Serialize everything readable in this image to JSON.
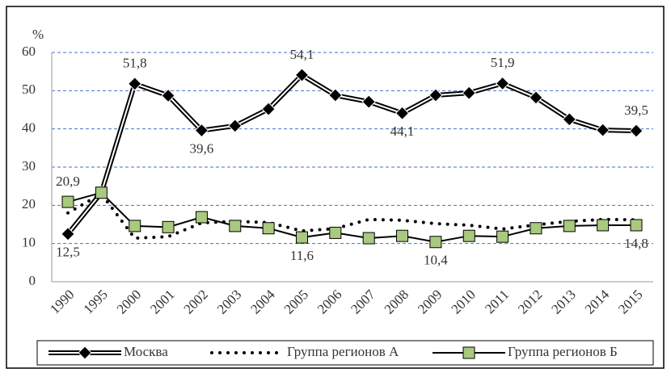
{
  "chart_data": {
    "type": "line",
    "ylabel": "%",
    "categories": [
      "1990",
      "1995",
      "2000",
      "2001",
      "2002",
      "2003",
      "2004",
      "2005",
      "2006",
      "2007",
      "2008",
      "2009",
      "2010",
      "2011",
      "2012",
      "2013",
      "2014",
      "2015"
    ],
    "ylim": [
      0,
      60
    ],
    "yticks": [
      0,
      10,
      20,
      30,
      40,
      50,
      60
    ],
    "grid": true,
    "legend": "bottom",
    "series": [
      {
        "name": "Москва",
        "color": "#000000",
        "line_style": "double",
        "marker": "diamond",
        "marker_color": "#000000",
        "values": [
          12.5,
          23.3,
          51.8,
          48.7,
          39.6,
          40.8,
          45.2,
          54.1,
          48.8,
          47.1,
          44.1,
          48.8,
          49.4,
          51.9,
          48.2,
          42.5,
          39.7,
          39.5
        ],
        "value_labels": [
          "12,5",
          null,
          "51,8",
          null,
          "39,6",
          null,
          null,
          "54,1",
          null,
          null,
          "44,1",
          null,
          null,
          "51,9",
          null,
          null,
          null,
          "39,5"
        ]
      },
      {
        "name": "Группа регионов А",
        "color": "#000000",
        "line_style": "dotted",
        "marker": "none",
        "values": [
          18.0,
          23.0,
          11.4,
          11.8,
          15.4,
          15.8,
          15.5,
          13.3,
          13.9,
          16.3,
          16.1,
          15.2,
          14.8,
          13.8,
          14.9,
          15.8,
          16.3,
          16.2
        ]
      },
      {
        "name": "Группа регионов Б",
        "color": "#000000",
        "line_style": "solid",
        "marker": "square",
        "marker_color": "#a9c97e",
        "values": [
          20.9,
          23.3,
          14.6,
          14.3,
          16.9,
          14.6,
          14.0,
          11.6,
          12.8,
          11.4,
          12.0,
          10.4,
          12.0,
          11.8,
          14.0,
          14.6,
          14.8,
          14.8
        ],
        "value_labels": [
          "20,9",
          null,
          null,
          null,
          null,
          null,
          null,
          "11,6",
          null,
          null,
          null,
          "10,4",
          null,
          null,
          null,
          null,
          null,
          "14,8"
        ]
      }
    ]
  }
}
